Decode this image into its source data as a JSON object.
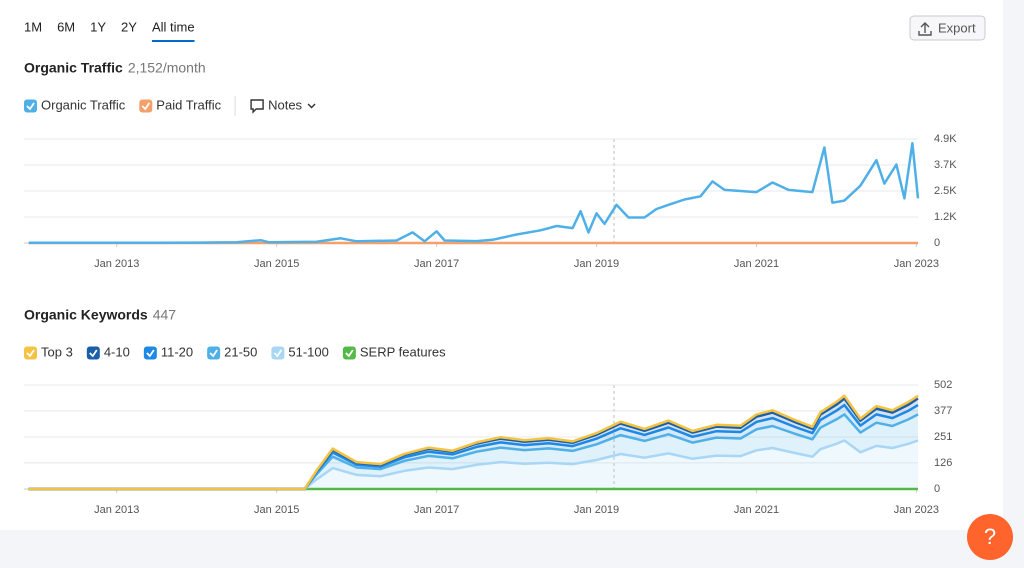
{
  "tabs": [
    "1M",
    "6M",
    "1Y",
    "2Y",
    "All time"
  ],
  "export_button": "Export",
  "notes_button": "Notes",
  "help_button": "?",
  "chart_data": [
    {
      "type": "line",
      "title": "Organic Traffic",
      "subtitle": "2,152/month",
      "x": [
        2011.9,
        2012.5,
        2013,
        2013.5,
        2014,
        2014.5,
        2014.8,
        2014.9,
        2015.5,
        2015.8,
        2016.0,
        2016.5,
        2016.7,
        2016.85,
        2017.0,
        2017.1,
        2017.5,
        2017.7,
        2018.0,
        2018.3,
        2018.5,
        2018.7,
        2018.8,
        2018.9,
        2019.0,
        2019.1,
        2019.25,
        2019.4,
        2019.6,
        2019.75,
        2019.9,
        2020.1,
        2020.3,
        2020.45,
        2020.6,
        2020.8,
        2021.0,
        2021.2,
        2021.4,
        2021.7,
        2021.85,
        2021.95,
        2022.1,
        2022.3,
        2022.5,
        2022.6,
        2022.75,
        2022.85,
        2022.95,
        2023.02
      ],
      "series": [
        {
          "name": "Organic Traffic",
          "color": "#4fb0e8",
          "values": [
            10,
            10,
            10,
            15,
            20,
            40,
            130,
            40,
            60,
            220,
            80,
            120,
            500,
            80,
            550,
            120,
            90,
            150,
            400,
            600,
            800,
            700,
            1500,
            500,
            1400,
            900,
            1800,
            1200,
            1200,
            1600,
            1800,
            2050,
            2200,
            2900,
            2500,
            2450,
            2400,
            2850,
            2500,
            2400,
            4500,
            1900,
            2000,
            2700,
            3900,
            2800,
            3700,
            2100,
            4700,
            2100
          ]
        },
        {
          "name": "Paid Traffic",
          "color": "#f5a06a",
          "values": [
            0,
            0,
            0,
            0,
            0,
            0,
            0,
            0,
            0,
            0,
            0,
            0,
            0,
            0,
            0,
            0,
            0,
            0,
            0,
            0,
            0,
            0,
            0,
            0,
            0,
            0,
            0,
            0,
            0,
            0,
            0,
            0,
            0,
            0,
            0,
            0,
            0,
            0,
            0,
            0,
            0,
            0,
            0,
            0,
            0,
            0,
            0,
            0,
            0,
            0
          ]
        }
      ],
      "xlim": [
        2011.84,
        2023.02
      ],
      "xticks": [
        {
          "value": 2013,
          "label": "Jan 2013"
        },
        {
          "value": 2015,
          "label": "Jan 2015"
        },
        {
          "value": 2017,
          "label": "Jan 2017"
        },
        {
          "value": 2019,
          "label": "Jan 2019"
        },
        {
          "value": 2021,
          "label": "Jan 2021"
        },
        {
          "value": 2023,
          "label": "Jan 2023"
        }
      ],
      "ylim": [
        0,
        4900
      ],
      "yticks": [
        0,
        {
          "value": 1225,
          "label": "1.2K"
        },
        {
          "value": 2450,
          "label": "2.5K"
        },
        {
          "value": 3675,
          "label": "3.7K"
        },
        {
          "value": 4900,
          "label": "4.9K"
        }
      ],
      "grid": true
    },
    {
      "type": "area",
      "stacked": true,
      "title": "Organic Keywords",
      "subtitle": "447",
      "x": [
        2011.9,
        2013,
        2014,
        2015,
        2015.35,
        2015.5,
        2015.7,
        2016.0,
        2016.3,
        2016.6,
        2016.9,
        2017.2,
        2017.5,
        2017.8,
        2018.1,
        2018.4,
        2018.7,
        2019.0,
        2019.3,
        2019.6,
        2019.9,
        2020.2,
        2020.5,
        2020.8,
        2021.0,
        2021.2,
        2021.5,
        2021.7,
        2021.8,
        2022.0,
        2022.1,
        2022.3,
        2022.5,
        2022.7,
        2022.9,
        2023.02
      ],
      "series": [
        {
          "name": "Top 3",
          "color": "#f5c342",
          "values": [
            0,
            0,
            0,
            0,
            0,
            3,
            5,
            4,
            4,
            5,
            6,
            5,
            6,
            7,
            7,
            7,
            7,
            8,
            9,
            9,
            10,
            8,
            9,
            9,
            11,
            11,
            10,
            9,
            11,
            13,
            13,
            10,
            12,
            11,
            13,
            13
          ]
        },
        {
          "name": "4-10",
          "color": "#1a5fa8",
          "values": [
            0,
            0,
            0,
            0,
            0,
            6,
            14,
            9,
            8,
            12,
            14,
            13,
            16,
            18,
            16,
            17,
            16,
            19,
            23,
            20,
            23,
            20,
            22,
            21,
            25,
            27,
            23,
            21,
            26,
            29,
            32,
            24,
            28,
            27,
            29,
            32
          ]
        },
        {
          "name": "11-20",
          "color": "#1e88e5",
          "values": [
            0,
            0,
            0,
            0,
            0,
            9,
            20,
            13,
            12,
            17,
            20,
            19,
            23,
            25,
            24,
            25,
            23,
            27,
            33,
            29,
            33,
            28,
            31,
            31,
            36,
            38,
            33,
            30,
            37,
            42,
            45,
            34,
            40,
            38,
            42,
            45
          ]
        },
        {
          "name": "21-50",
          "color": "#4fb0e8",
          "values": [
            0,
            0,
            0,
            0,
            0,
            25,
            55,
            36,
            34,
            48,
            56,
            52,
            63,
            70,
            66,
            69,
            64,
            76,
            91,
            81,
            92,
            78,
            87,
            85,
            101,
            106,
            92,
            84,
            104,
            118,
            126,
            95,
            112,
            106,
            118,
            126
          ]
        },
        {
          "name": "51-100",
          "color": "#a9d6f5",
          "values": [
            0,
            0,
            0,
            0,
            0,
            47,
            101,
            68,
            62,
            88,
            104,
            96,
            117,
            130,
            122,
            127,
            120,
            140,
            169,
            151,
            172,
            146,
            161,
            159,
            187,
            198,
            172,
            156,
            192,
            218,
            234,
            177,
            208,
            198,
            218,
            234
          ]
        },
        {
          "name": "SERP features",
          "color": "#54b948",
          "values": [
            0,
            0,
            0,
            0,
            0,
            0,
            0,
            0,
            0,
            0,
            0,
            0,
            0,
            0,
            0,
            0,
            0,
            0,
            0,
            0,
            0,
            0,
            0,
            0,
            0,
            0,
            0,
            0,
            0,
            0,
            0,
            0,
            0,
            0,
            0,
            0
          ]
        }
      ],
      "xlim": [
        2011.84,
        2023.02
      ],
      "xticks": [
        {
          "value": 2013,
          "label": "Jan 2013"
        },
        {
          "value": 2015,
          "label": "Jan 2015"
        },
        {
          "value": 2017,
          "label": "Jan 2017"
        },
        {
          "value": 2019,
          "label": "Jan 2019"
        },
        {
          "value": 2021,
          "label": "Jan 2021"
        },
        {
          "value": 2023,
          "label": "Jan 2023"
        }
      ],
      "ylim": [
        0,
        502
      ],
      "yticks": [
        0,
        126,
        251,
        377,
        502
      ],
      "grid": true
    }
  ]
}
